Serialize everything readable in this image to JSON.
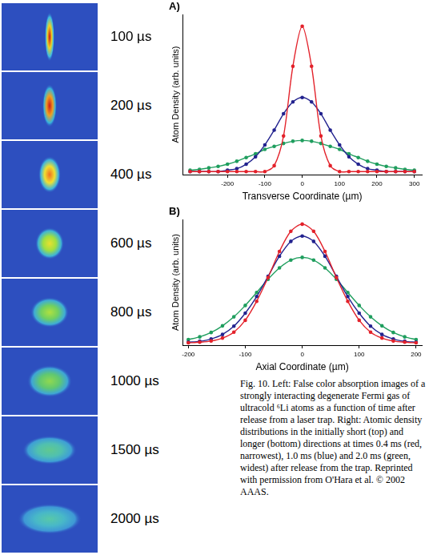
{
  "images": {
    "time_labels": [
      "100 µs",
      "200 µs",
      "400 µs",
      "600 µs",
      "800 µs",
      "1000 µs",
      "1500 µs",
      "2000 µs"
    ]
  },
  "chart_data": [
    {
      "type": "line",
      "panel_label": "A)",
      "x_label": "Transverse Coordinate (µm)",
      "y_label": "Atom Density (arb. units)",
      "x": [
        -300,
        -275,
        -250,
        -225,
        -200,
        -175,
        -150,
        -125,
        -100,
        -75,
        -50,
        -25,
        0,
        25,
        50,
        75,
        100,
        125,
        150,
        175,
        200,
        225,
        250,
        275,
        300
      ],
      "series": [
        {
          "color": "#e3222b",
          "marker": "circle",
          "line_style": "solid",
          "values": [
            0.02,
            0.02,
            0.02,
            0.02,
            0.02,
            0.02,
            0.02,
            0.02,
            0.02,
            0.06,
            0.26,
            0.73,
            1.0,
            0.73,
            0.26,
            0.06,
            0.02,
            0.02,
            0.02,
            0.02,
            0.02,
            0.02,
            0.02,
            0.02,
            0.02
          ]
        },
        {
          "color": "#23238f",
          "marker": "circle",
          "line_style": "solid",
          "values": [
            0.02,
            0.02,
            0.02,
            0.02,
            0.03,
            0.04,
            0.07,
            0.12,
            0.2,
            0.3,
            0.41,
            0.49,
            0.52,
            0.49,
            0.41,
            0.3,
            0.2,
            0.12,
            0.07,
            0.04,
            0.03,
            0.02,
            0.02,
            0.02,
            0.02
          ]
        },
        {
          "color": "#1f9e5e",
          "marker": "circle",
          "line_style": "solid",
          "values": [
            0.03,
            0.035,
            0.045,
            0.055,
            0.07,
            0.09,
            0.115,
            0.14,
            0.17,
            0.19,
            0.21,
            0.225,
            0.23,
            0.225,
            0.21,
            0.19,
            0.17,
            0.14,
            0.115,
            0.09,
            0.07,
            0.055,
            0.045,
            0.035,
            0.03
          ]
        }
      ],
      "xlim": [
        -320,
        320
      ],
      "xticks": [
        -200,
        -100,
        0,
        100,
        200,
        300
      ],
      "ylim": [
        0,
        1.08
      ],
      "tick_labels": "x",
      "grid": false
    },
    {
      "type": "line",
      "panel_label": "B)",
      "x_label": "Axial Coordinate (µm)",
      "y_label": "Atom Density (arb. units)",
      "x": [
        -200,
        -180,
        -160,
        -140,
        -120,
        -100,
        -80,
        -60,
        -40,
        -20,
        0,
        20,
        40,
        60,
        80,
        100,
        120,
        140,
        160,
        180,
        200
      ],
      "series": [
        {
          "color": "#e3222b",
          "marker": "circle",
          "line_style": "solid",
          "values": [
            0.02,
            0.025,
            0.035,
            0.06,
            0.11,
            0.21,
            0.37,
            0.57,
            0.79,
            0.96,
            1.02,
            0.96,
            0.79,
            0.57,
            0.37,
            0.21,
            0.11,
            0.06,
            0.035,
            0.025,
            0.02
          ]
        },
        {
          "color": "#23238f",
          "marker": "circle",
          "line_style": "solid",
          "values": [
            0.025,
            0.033,
            0.052,
            0.09,
            0.16,
            0.27,
            0.41,
            0.58,
            0.75,
            0.875,
            0.92,
            0.875,
            0.75,
            0.58,
            0.41,
            0.27,
            0.16,
            0.09,
            0.052,
            0.033,
            0.025
          ]
        },
        {
          "color": "#1f9e5e",
          "marker": "circle",
          "line_style": "solid",
          "values": [
            0.047,
            0.07,
            0.107,
            0.163,
            0.239,
            0.335,
            0.444,
            0.556,
            0.652,
            0.717,
            0.74,
            0.717,
            0.652,
            0.556,
            0.444,
            0.335,
            0.239,
            0.163,
            0.107,
            0.07,
            0.047
          ]
        }
      ],
      "xlim": [
        -210,
        210
      ],
      "xticks": [
        -200,
        -100,
        0,
        100,
        200
      ],
      "ylim": [
        0,
        1.06
      ],
      "tick_labels": "x",
      "grid": false
    }
  ],
  "caption": "Fig. 10.  Left: False color absorption images of a strongly interacting degenerate Fermi gas of ultracold ⁶Li atoms as a function of time after release from a laser trap. Right: Atomic density distributions in the initially short (top) and longer (bottom) directions at times 0.4 ms (red, narrowest), 1.0 ms (blue) and 2.0 ms (green, widest) after release from the trap. Reprinted with permission from O'Hara et al. © 2002 AAAS."
}
